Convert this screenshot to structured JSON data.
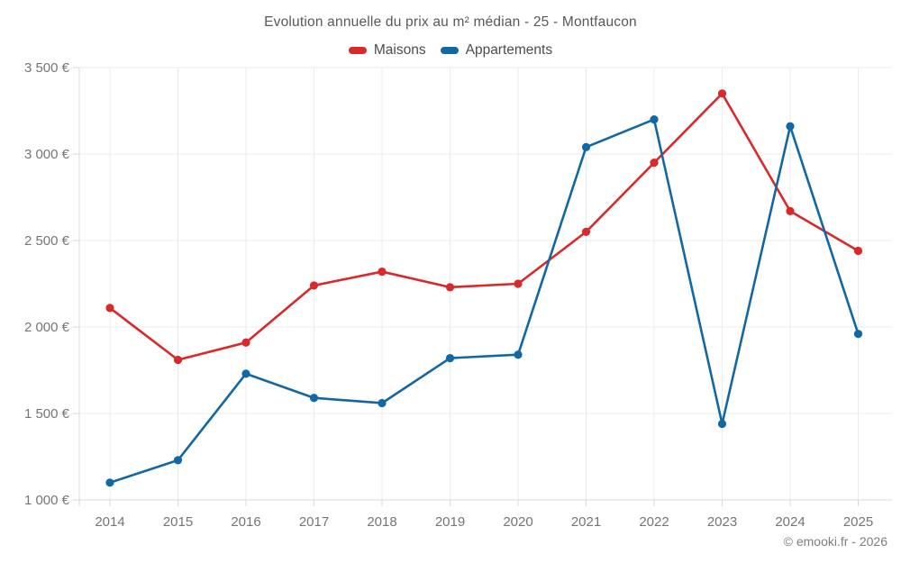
{
  "footer": {
    "copyright": "© emooki.fr - 2026"
  },
  "colors": {
    "maisons": "#d9292b",
    "appartements": "#1268a3",
    "grid": "#ebebeb",
    "axis": "#d9d9d9",
    "tick_text": "#757575",
    "title_text": "#595959"
  },
  "chart_data": {
    "type": "line",
    "title": "Evolution annuelle du prix au m² médian - 25 - Montfaucon",
    "x": [
      "2014",
      "2015",
      "2016",
      "2017",
      "2018",
      "2019",
      "2020",
      "2021",
      "2022",
      "2023",
      "2024",
      "2025"
    ],
    "series": [
      {
        "name": "Maisons",
        "color": "#d9292b",
        "values": [
          2110,
          1810,
          1910,
          2240,
          2320,
          2230,
          2250,
          2550,
          2950,
          3350,
          2670,
          2440
        ]
      },
      {
        "name": "Appartements",
        "color": "#1268a3",
        "values": [
          1100,
          1230,
          1730,
          1590,
          1560,
          1820,
          1840,
          3040,
          3200,
          1440,
          3160,
          1960
        ]
      }
    ],
    "xlabel": "",
    "ylabel": "",
    "ylim": [
      1000,
      3500
    ],
    "ytick_step": 500,
    "ytick_suffix": " €",
    "grid": true,
    "legend_position": "top",
    "marker": "circle"
  }
}
